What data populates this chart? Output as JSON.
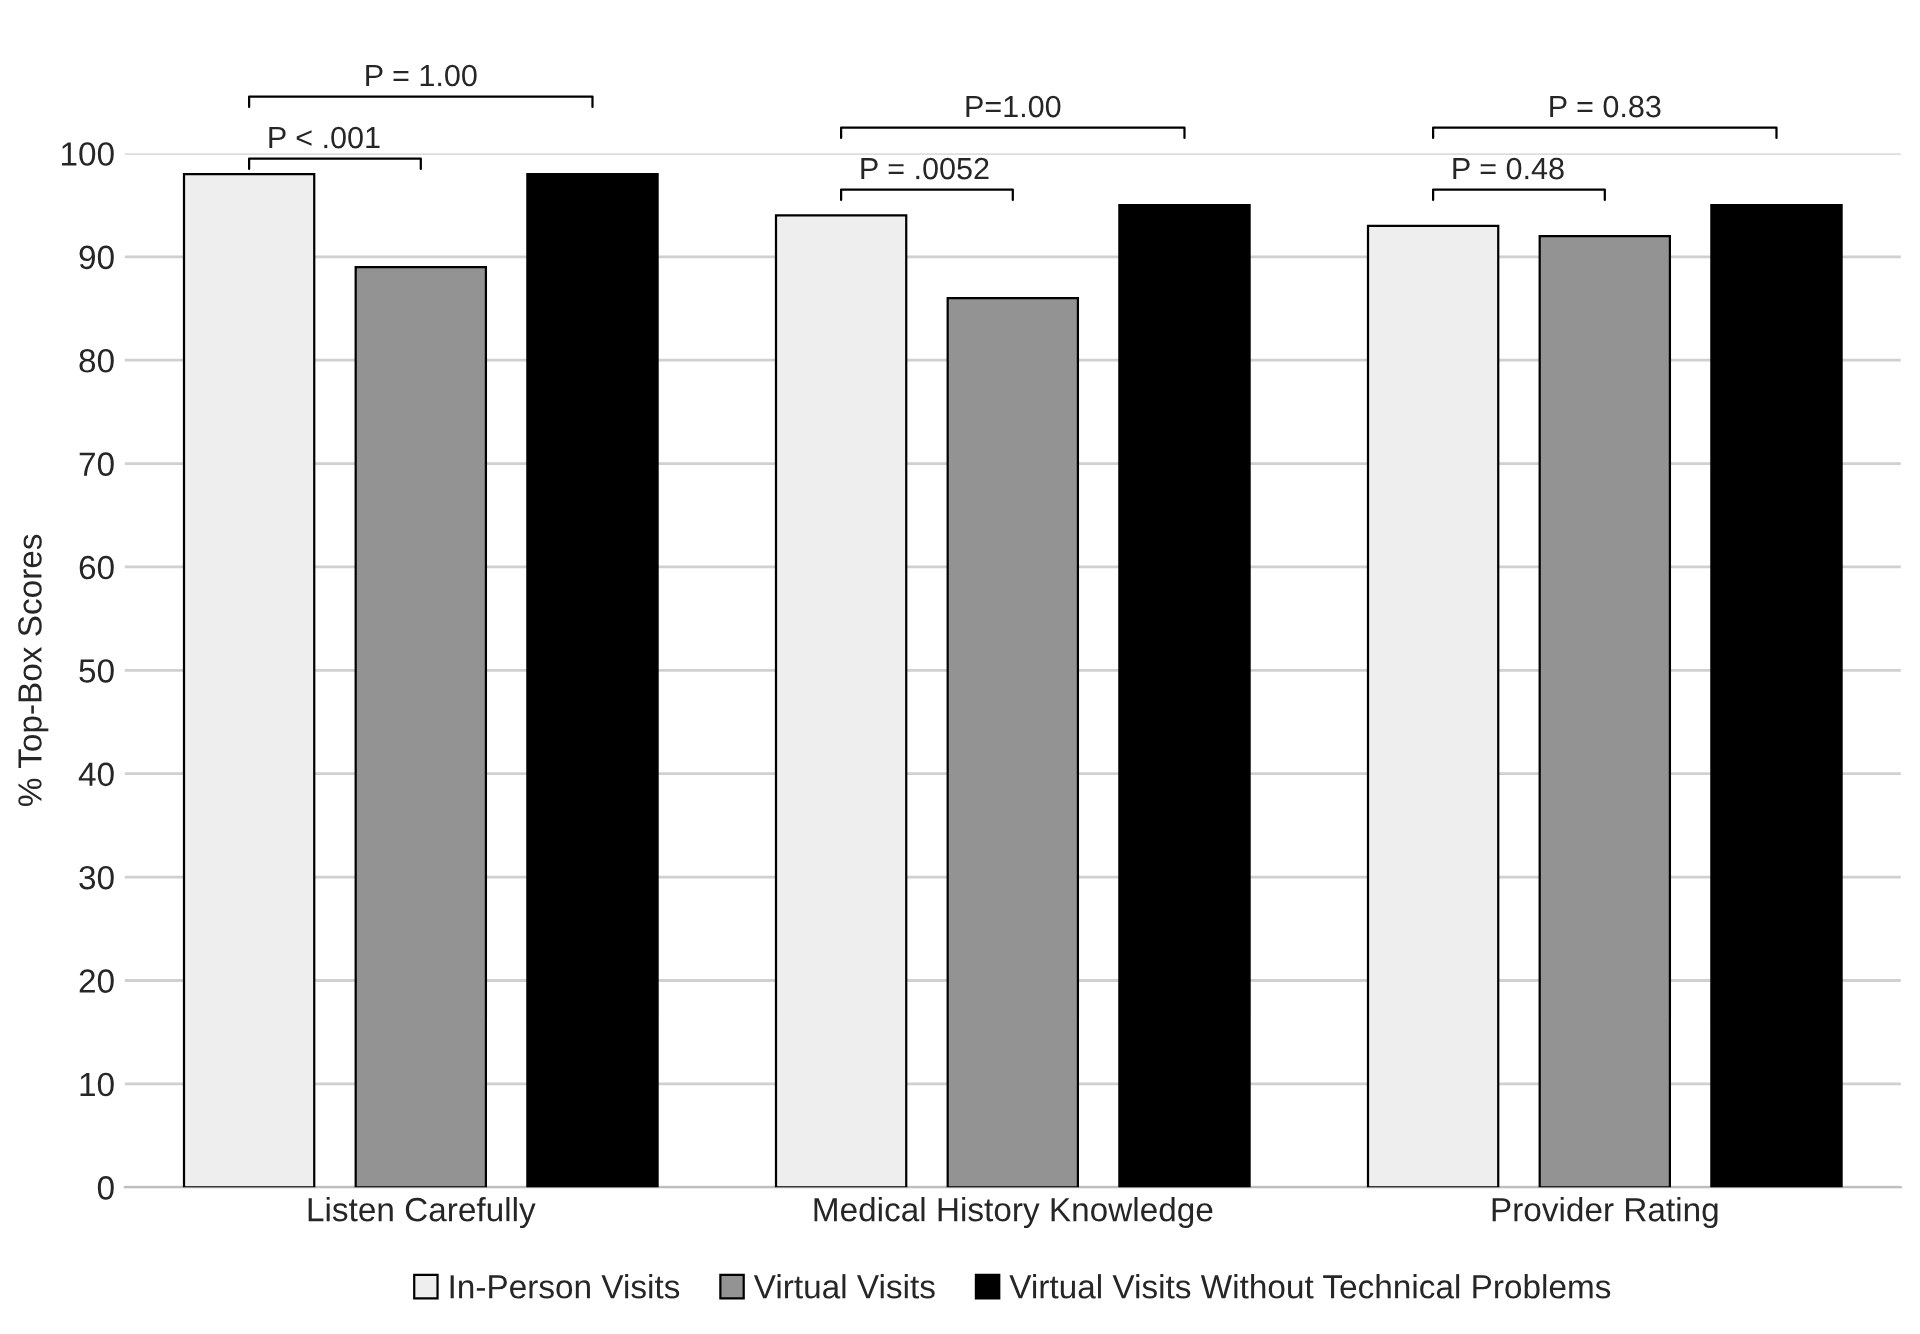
{
  "chart_data": {
    "type": "bar",
    "ylabel": "% Top-Box Scores",
    "categories": [
      "Listen Carefully",
      "Medical History Knowledge",
      "Provider Rating"
    ],
    "series": [
      {
        "name": "In-Person Visits",
        "color": "#eeeeee",
        "values": [
          98,
          94,
          93
        ]
      },
      {
        "name": "Virtual Visits",
        "color": "#939393",
        "values": [
          89,
          86,
          92
        ]
      },
      {
        "name": "Virtual Visits Without Technical Problems",
        "color": "#000000",
        "values": [
          98,
          95,
          95
        ]
      }
    ],
    "ylim": [
      0,
      100
    ],
    "yticks": [
      0,
      10,
      20,
      30,
      40,
      50,
      60,
      70,
      80,
      90,
      100
    ],
    "grid": "y",
    "legend": "bottom",
    "annotations": [
      "P < .001",
      "P = 1.00",
      "P = .0052",
      "P=1.00",
      "P = 0.48",
      "P = 0.83"
    ]
  }
}
